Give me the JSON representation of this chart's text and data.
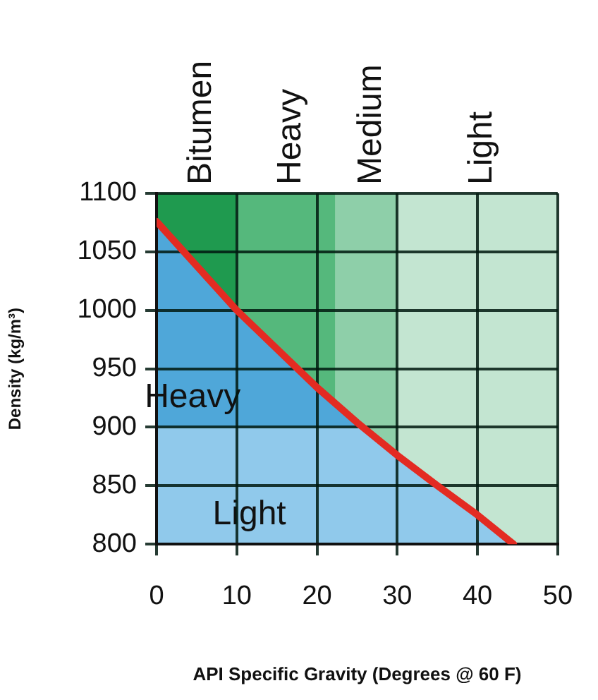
{
  "chart_data": {
    "type": "line",
    "xlabel": "API Specific Gravity (Degrees @ 60 F)",
    "ylabel": "Density (kg/m³)",
    "x": [
      0,
      10,
      20,
      25,
      30,
      35,
      40,
      44.5
    ],
    "series": [
      {
        "color": "#e32b22",
        "values": [
          1076,
          1000,
          934,
          904,
          876,
          850,
          825,
          800
        ]
      }
    ],
    "xlim": [
      0,
      50
    ],
    "xticks": [
      0,
      10,
      20,
      30,
      40,
      50
    ],
    "ylim": [
      800,
      1100
    ],
    "yticks": [
      800,
      850,
      900,
      950,
      1000,
      1050,
      1100
    ],
    "grid": true,
    "legend": false,
    "marker": "none",
    "bands": [
      {
        "axis": "x",
        "from": 0,
        "to": 10,
        "label": "Bitumen",
        "color": "#1f9a4f"
      },
      {
        "axis": "x",
        "from": 10,
        "to": 22.3,
        "label": "Heavy",
        "color": "#55b87c"
      },
      {
        "axis": "x",
        "from": 22.3,
        "to": 30,
        "label": "Medium",
        "color": "#8ecfa9"
      },
      {
        "axis": "x",
        "from": 30,
        "to": 50,
        "label": "Light",
        "color": "#c3e5d1"
      },
      {
        "axis": "y",
        "from": 900,
        "to": 1100,
        "label": "Heavy",
        "color": "#4fa7d9"
      },
      {
        "axis": "y",
        "from": 800,
        "to": 900,
        "label": "Light",
        "color": "#90c9eb"
      }
    ]
  }
}
